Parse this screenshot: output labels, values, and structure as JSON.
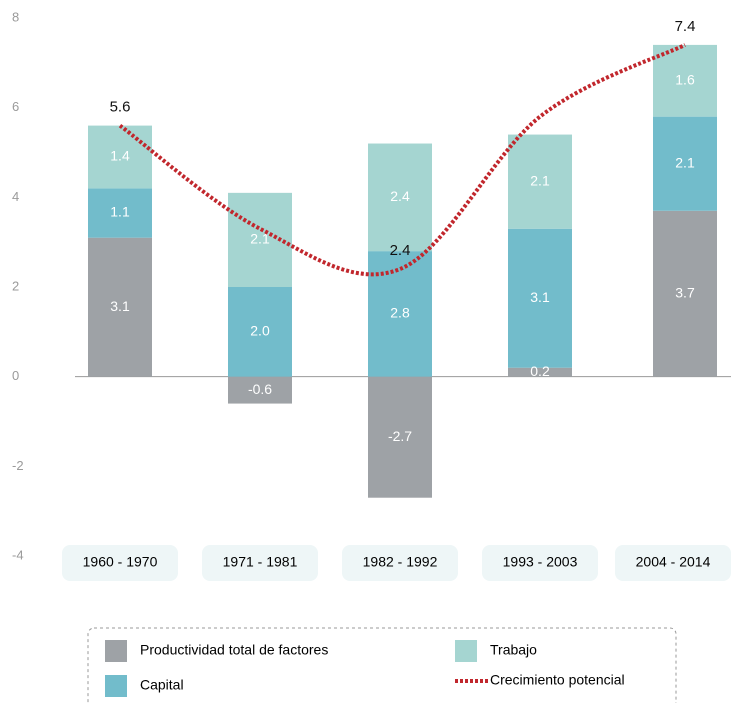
{
  "chart_data": {
    "type": "bar",
    "stacked": true,
    "categories": [
      "1960 - 1970",
      "1971 - 1981",
      "1982 - 1992",
      "1993 - 2003",
      "2004 - 2014"
    ],
    "ylim": [
      -4,
      8
    ],
    "yticks": [
      8,
      6,
      4,
      2,
      0,
      -2,
      -4
    ],
    "series": [
      {
        "name": "Productividad total de factores",
        "color": "#9ea2a6",
        "values": [
          3.1,
          -0.6,
          -2.7,
          0.2,
          3.7
        ],
        "value_labels": [
          "3.1",
          "-0.6",
          "-2.7",
          "0.2",
          "3.7"
        ]
      },
      {
        "name": "Capital",
        "color": "#72bccb",
        "values": [
          1.1,
          2.0,
          2.8,
          3.1,
          2.1
        ],
        "value_labels": [
          "1.1",
          "2.0",
          "2.8",
          "3.1",
          "2.1"
        ]
      },
      {
        "name": "Trabajo",
        "color": "#a5d5d1",
        "values": [
          1.4,
          2.1,
          2.4,
          2.1,
          1.6
        ],
        "value_labels": [
          "1.4",
          "2.1",
          "2.4",
          "2.1",
          "1.6"
        ]
      },
      {
        "name": "Crecimiento potencial",
        "type": "line",
        "color": "#c1272d",
        "values": [
          5.6,
          3.3,
          2.4,
          5.8,
          7.4
        ],
        "value_labels": [
          "5.6",
          null,
          "2.4",
          null,
          "7.4"
        ]
      }
    ]
  }
}
